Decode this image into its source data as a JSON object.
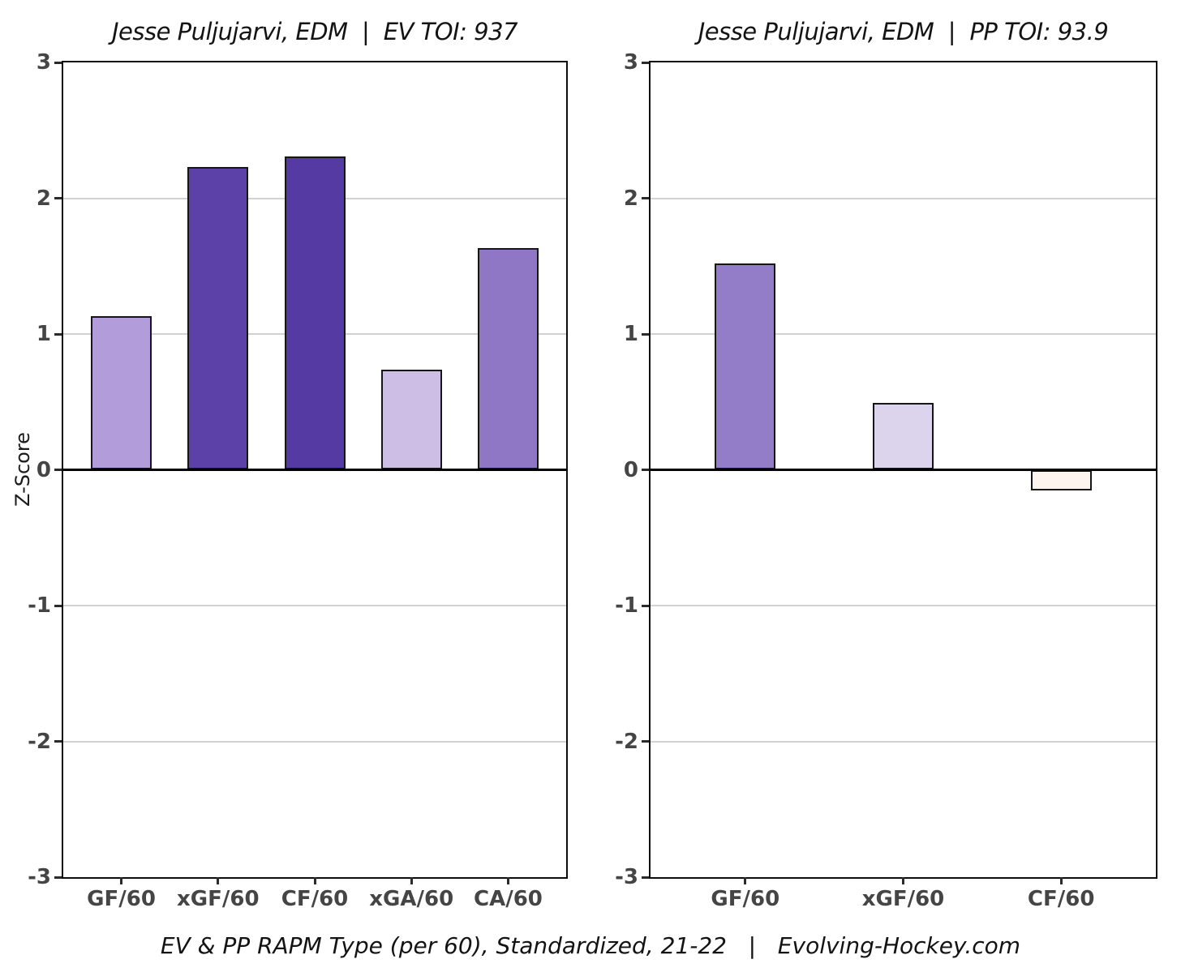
{
  "page": {
    "ylabel": "Z-Score",
    "caption": "EV & PP RAPM Type (per 60), Standardized, 21-22   |   Evolving-Hockey.com"
  },
  "style": {
    "bar_border": "#161616",
    "grid_color": "#d2d2d2",
    "zero_line_color": "#000000",
    "axis_text_color": "#454545",
    "title_color": "#131313"
  },
  "chart_data": [
    {
      "type": "bar",
      "title": "Jesse Puljujarvi, EDM  |  EV TOI: 937",
      "ylabel": "Z-Score",
      "ylim": [
        -3,
        3
      ],
      "yticks": [
        3,
        2,
        1,
        0,
        -1,
        -2,
        -3
      ],
      "grid": "horizontal",
      "legend": "none",
      "categories": [
        "GF/60",
        "xGF/60",
        "CF/60",
        "xGA/60",
        "CA/60"
      ],
      "values": [
        1.13,
        2.23,
        2.31,
        0.74,
        1.63
      ],
      "bar_colors": [
        "#b29cd9",
        "#5b41a8",
        "#563aa3",
        "#ccbee5",
        "#8f77c5"
      ]
    },
    {
      "type": "bar",
      "title": "Jesse Puljujarvi, EDM  |  PP TOI: 93.9",
      "ylabel": "Z-Score",
      "ylim": [
        -3,
        3
      ],
      "yticks": [
        3,
        2,
        1,
        0,
        -1,
        -2,
        -3
      ],
      "grid": "horizontal",
      "legend": "none",
      "categories": [
        "GF/60",
        "xGF/60",
        "CF/60"
      ],
      "values": [
        1.52,
        0.49,
        -0.15
      ],
      "bar_colors": [
        "#937cc8",
        "#dcd4ec",
        "#fdf4f0"
      ]
    }
  ]
}
